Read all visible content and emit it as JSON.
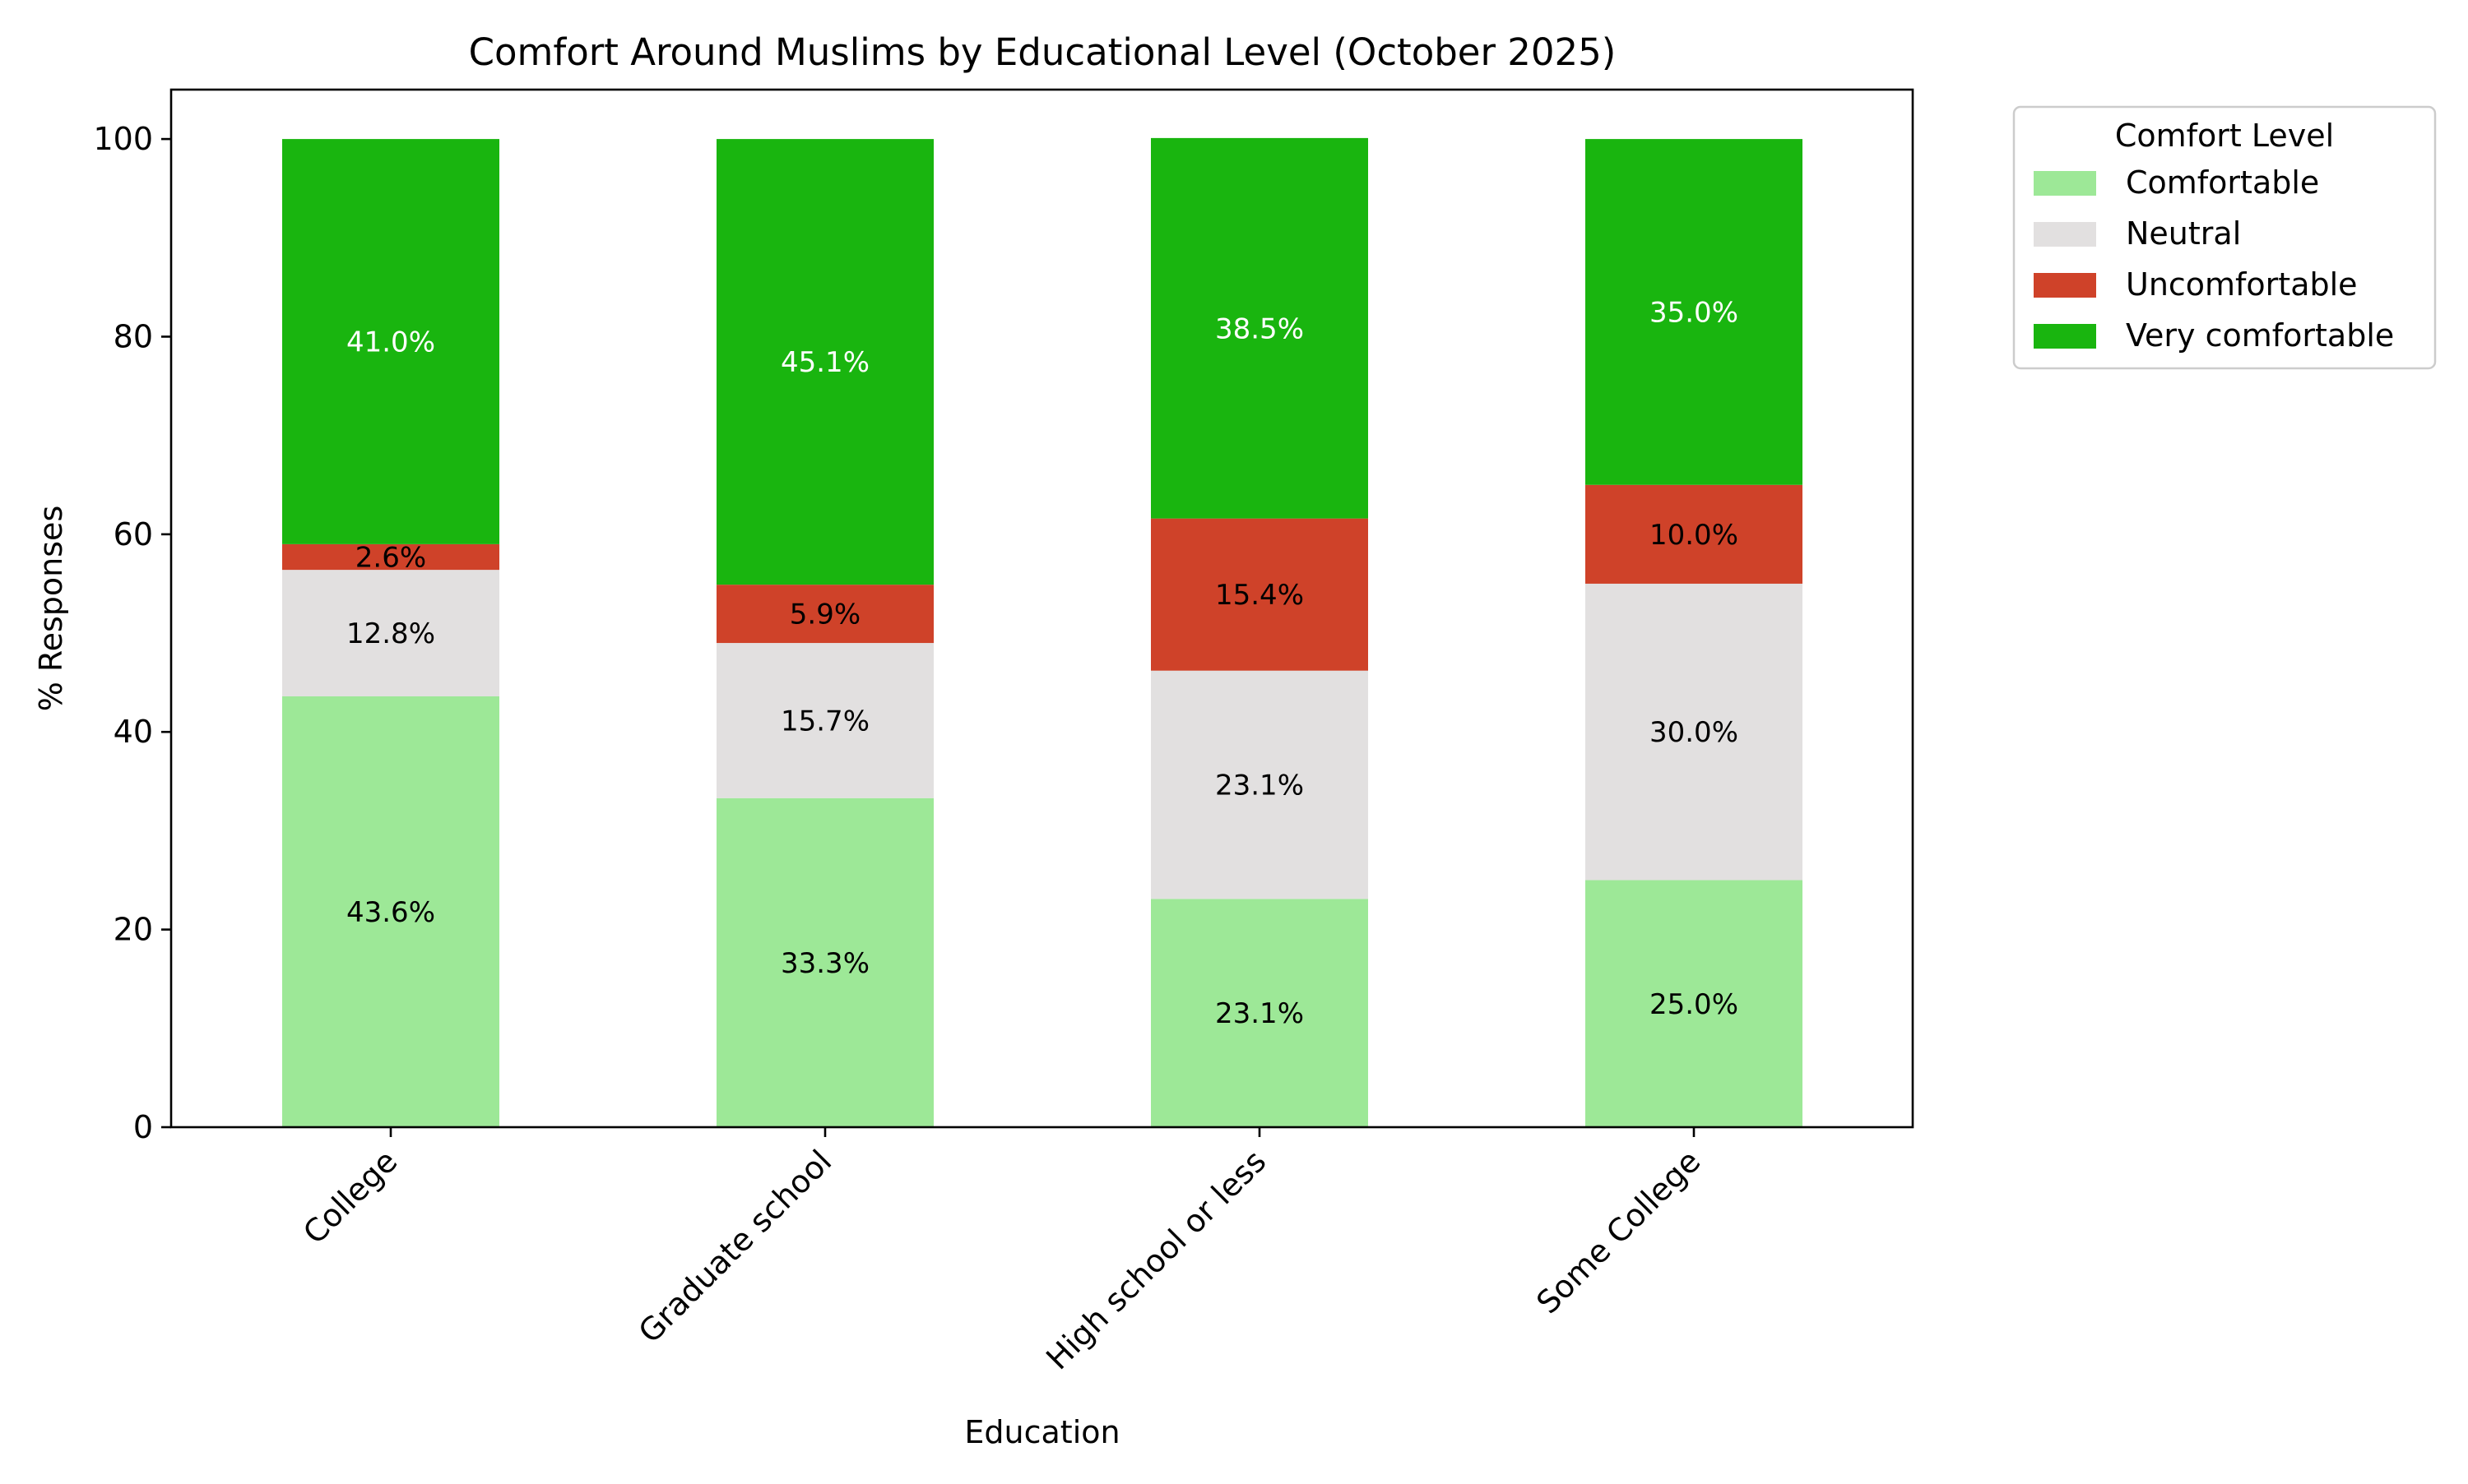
{
  "chart_data": {
    "type": "bar",
    "stacked": true,
    "title": "Comfort Around Muslims by Educational Level (October 2025)",
    "xlabel": "Education",
    "ylabel": "% Responses",
    "ylim": [
      0,
      105
    ],
    "yticks": [
      "0",
      "20",
      "40",
      "60",
      "80",
      "100"
    ],
    "categories": [
      "College",
      "Graduate school",
      "High school or less",
      "Some College"
    ],
    "series": [
      {
        "name": "Comfortable",
        "color": "#9de897",
        "label_color": "#000000",
        "values": [
          43.6,
          33.3,
          23.1,
          25.0
        ],
        "labels": [
          "43.6%",
          "33.3%",
          "23.1%",
          "25.0%"
        ]
      },
      {
        "name": "Neutral",
        "color": "#e2e0e0",
        "label_color": "#000000",
        "values": [
          12.8,
          15.7,
          23.1,
          30.0
        ],
        "labels": [
          "12.8%",
          "15.7%",
          "23.1%",
          "30.0%"
        ]
      },
      {
        "name": "Uncomfortable",
        "color": "#cf4229",
        "label_color": "#000000",
        "values": [
          2.6,
          5.9,
          15.4,
          10.0
        ],
        "labels": [
          "2.6%",
          "5.9%",
          "15.4%",
          "10.0%"
        ]
      },
      {
        "name": "Very comfortable",
        "color": "#19b50f",
        "label_color": "#ffffff",
        "values": [
          41.0,
          45.1,
          38.5,
          35.0
        ],
        "labels": [
          "41.0%",
          "45.1%",
          "38.5%",
          "35.0%"
        ]
      }
    ],
    "legend": {
      "title": "Comfort Level",
      "position": "outside-right"
    },
    "grid": false
  }
}
